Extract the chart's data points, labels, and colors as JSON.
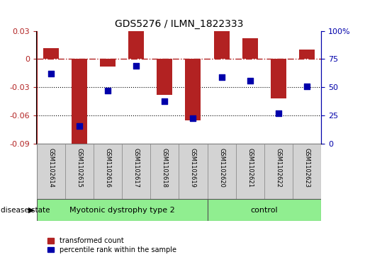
{
  "title": "GDS5276 / ILMN_1822333",
  "categories": [
    "GSM1102614",
    "GSM1102615",
    "GSM1102616",
    "GSM1102617",
    "GSM1102618",
    "GSM1102619",
    "GSM1102620",
    "GSM1102621",
    "GSM1102622",
    "GSM1102623"
  ],
  "bar_values": [
    0.012,
    -0.092,
    -0.008,
    0.03,
    -0.038,
    -0.065,
    0.03,
    0.022,
    -0.042,
    0.01
  ],
  "scatter_values": [
    62,
    16,
    47,
    69,
    38,
    23,
    59,
    56,
    27,
    51
  ],
  "ylim_left": [
    -0.09,
    0.03
  ],
  "ylim_right": [
    0,
    100
  ],
  "yticks_left": [
    -0.09,
    -0.06,
    -0.03,
    0.0,
    0.03
  ],
  "yticks_right": [
    0,
    25,
    50,
    75,
    100
  ],
  "bar_color": "#B22222",
  "scatter_color": "#0000AA",
  "dotted_lines": [
    -0.03,
    -0.06
  ],
  "disease_group1_label": "Myotonic dystrophy type 2",
  "disease_group1_count": 6,
  "disease_group2_label": "control",
  "disease_group2_count": 4,
  "disease_group_color": "#90EE90",
  "sample_box_color": "#D3D3D3",
  "legend_items": [
    {
      "label": "transformed count",
      "color": "#B22222"
    },
    {
      "label": "percentile rank within the sample",
      "color": "#0000AA"
    }
  ],
  "disease_state_label": "disease state",
  "background_color": "#FFFFFF"
}
